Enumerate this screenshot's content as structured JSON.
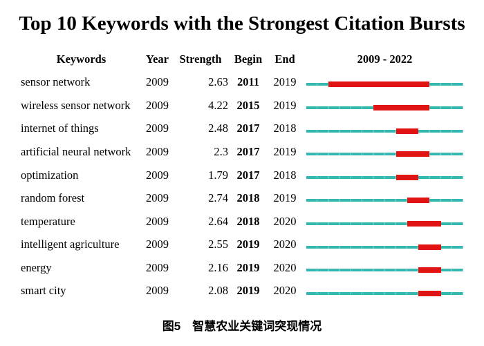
{
  "title": "Top 10 Keywords with the Strongest Citation Bursts",
  "caption": "图5　智慧农业关键词突现情况",
  "columns": [
    "Keywords",
    "Year",
    "Strength",
    "Begin",
    "End",
    "2009 - 2022"
  ],
  "colors": {
    "line": "#32b8ae",
    "line_tick": "#8ed4cd",
    "burst": "#e11414",
    "text": "#000000",
    "background": "#ffffff"
  },
  "chart_data": {
    "type": "table",
    "title": "Top 10 Keywords with the Strongest Citation Bursts",
    "columns": [
      "Keywords",
      "Year",
      "Strength",
      "Begin",
      "End",
      "2009 - 2022"
    ],
    "timeline_range": [
      2009,
      2022
    ],
    "timeline_label": "2009 - 2022",
    "burst_note": "red segment spans Begin..End inclusive on teal 2009-2022 track",
    "rows": [
      {
        "keyword": "sensor network",
        "year": 2009,
        "strength": 2.63,
        "begin": 2011,
        "end": 2019
      },
      {
        "keyword": "wireless sensor network",
        "year": 2009,
        "strength": 4.22,
        "begin": 2015,
        "end": 2019
      },
      {
        "keyword": "internet of things",
        "year": 2009,
        "strength": 2.48,
        "begin": 2017,
        "end": 2018
      },
      {
        "keyword": "artificial neural network",
        "year": 2009,
        "strength": 2.3,
        "begin": 2017,
        "end": 2019
      },
      {
        "keyword": "optimization",
        "year": 2009,
        "strength": 1.79,
        "begin": 2017,
        "end": 2018
      },
      {
        "keyword": "random forest",
        "year": 2009,
        "strength": 2.74,
        "begin": 2018,
        "end": 2019
      },
      {
        "keyword": "temperature",
        "year": 2009,
        "strength": 2.64,
        "begin": 2018,
        "end": 2020
      },
      {
        "keyword": "intelligent agriculture",
        "year": 2009,
        "strength": 2.55,
        "begin": 2019,
        "end": 2020
      },
      {
        "keyword": "energy",
        "year": 2009,
        "strength": 2.16,
        "begin": 2019,
        "end": 2020
      },
      {
        "keyword": "smart city",
        "year": 2009,
        "strength": 2.08,
        "begin": 2019,
        "end": 2020
      }
    ]
  }
}
